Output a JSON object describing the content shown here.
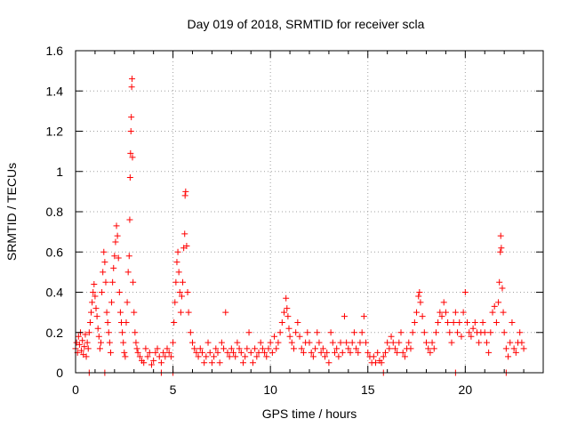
{
  "chart_data": {
    "type": "scatter",
    "title": "Day 019 of 2018, SRMTID for receiver scla",
    "xlabel": "GPS time / hours",
    "ylabel": "SRMTID / TECUs",
    "xlim": [
      0,
      24
    ],
    "ylim": [
      0,
      1.6
    ],
    "xticks": [
      0,
      5,
      10,
      15,
      20
    ],
    "xtick_labels": [
      "0",
      "5",
      "10",
      "15",
      "20"
    ],
    "yticks": [
      0,
      0.2,
      0.4,
      0.6,
      0.8,
      1,
      1.2,
      1.4,
      1.6
    ],
    "ytick_labels": [
      "0",
      "0.2",
      "0.4",
      "0.6",
      "0.8",
      "1",
      "1.2",
      "1.4",
      "1.6"
    ],
    "grid": true,
    "marker": "plus",
    "series_color": "#ff0000",
    "series": [
      {
        "name": "SRMTID",
        "points": [
          [
            0.0,
            0.12
          ],
          [
            0.05,
            0.15
          ],
          [
            0.1,
            0.1
          ],
          [
            0.15,
            0.18
          ],
          [
            0.2,
            0.14
          ],
          [
            0.25,
            0.2
          ],
          [
            0.3,
            0.11
          ],
          [
            0.35,
            0.16
          ],
          [
            0.4,
            0.09
          ],
          [
            0.45,
            0.13
          ],
          [
            0.5,
            0.19
          ],
          [
            0.55,
            0.08
          ],
          [
            0.6,
            0.15
          ],
          [
            0.65,
            0.12
          ],
          [
            0.7,
            0.2
          ],
          [
            0.75,
            0.25
          ],
          [
            0.8,
            0.3
          ],
          [
            0.85,
            0.35
          ],
          [
            0.9,
            0.4
          ],
          [
            0.95,
            0.44
          ],
          [
            1.0,
            0.38
          ],
          [
            1.05,
            0.32
          ],
          [
            1.1,
            0.28
          ],
          [
            1.15,
            0.22
          ],
          [
            1.2,
            0.18
          ],
          [
            1.25,
            0.12
          ],
          [
            1.3,
            0.15
          ],
          [
            1.35,
            0.4
          ],
          [
            1.4,
            0.5
          ],
          [
            1.45,
            0.6
          ],
          [
            1.5,
            0.55
          ],
          [
            1.55,
            0.45
          ],
          [
            1.6,
            0.3
          ],
          [
            1.65,
            0.25
          ],
          [
            1.7,
            0.2
          ],
          [
            1.75,
            0.15
          ],
          [
            1.8,
            0.1
          ],
          [
            1.85,
            0.35
          ],
          [
            1.9,
            0.45
          ],
          [
            1.95,
            0.52
          ],
          [
            2.0,
            0.58
          ],
          [
            2.05,
            0.65
          ],
          [
            2.1,
            0.73
          ],
          [
            2.15,
            0.68
          ],
          [
            2.2,
            0.57
          ],
          [
            2.25,
            0.4
          ],
          [
            2.3,
            0.3
          ],
          [
            2.35,
            0.25
          ],
          [
            2.4,
            0.2
          ],
          [
            2.45,
            0.15
          ],
          [
            2.5,
            0.1
          ],
          [
            2.55,
            0.08
          ],
          [
            2.6,
            0.25
          ],
          [
            2.65,
            0.35
          ],
          [
            2.7,
            0.5
          ],
          [
            2.75,
            0.58
          ],
          [
            2.78,
            0.76
          ],
          [
            2.8,
            0.97
          ],
          [
            2.82,
            1.09
          ],
          [
            2.84,
            1.2
          ],
          [
            2.86,
            1.27
          ],
          [
            2.88,
            1.42
          ],
          [
            2.9,
            1.46
          ],
          [
            2.92,
            1.07
          ],
          [
            2.95,
            0.45
          ],
          [
            3.0,
            0.3
          ],
          [
            3.05,
            0.2
          ],
          [
            3.1,
            0.15
          ],
          [
            3.15,
            0.12
          ],
          [
            3.2,
            0.1
          ],
          [
            3.3,
            0.08
          ],
          [
            3.4,
            0.06
          ],
          [
            3.5,
            0.05
          ],
          [
            3.6,
            0.12
          ],
          [
            3.7,
            0.08
          ],
          [
            3.8,
            0.1
          ],
          [
            3.9,
            0.04
          ],
          [
            4.0,
            0.06
          ],
          [
            4.1,
            0.1
          ],
          [
            4.2,
            0.12
          ],
          [
            4.3,
            0.08
          ],
          [
            4.4,
            0.05
          ],
          [
            4.5,
            0.1
          ],
          [
            4.6,
            0.08
          ],
          [
            4.7,
            0.12
          ],
          [
            4.8,
            0.1
          ],
          [
            4.9,
            0.08
          ],
          [
            5.0,
            0.15
          ],
          [
            5.05,
            0.25
          ],
          [
            5.1,
            0.35
          ],
          [
            5.15,
            0.45
          ],
          [
            5.2,
            0.55
          ],
          [
            5.25,
            0.6
          ],
          [
            5.3,
            0.5
          ],
          [
            5.35,
            0.4
          ],
          [
            5.4,
            0.3
          ],
          [
            5.45,
            0.38
          ],
          [
            5.5,
            0.45
          ],
          [
            5.55,
            0.62
          ],
          [
            5.6,
            0.69
          ],
          [
            5.62,
            0.88
          ],
          [
            5.65,
            0.9
          ],
          [
            5.7,
            0.63
          ],
          [
            5.75,
            0.4
          ],
          [
            5.8,
            0.3
          ],
          [
            5.9,
            0.2
          ],
          [
            6.0,
            0.15
          ],
          [
            6.1,
            0.12
          ],
          [
            6.2,
            0.1
          ],
          [
            6.3,
            0.08
          ],
          [
            6.4,
            0.12
          ],
          [
            6.5,
            0.1
          ],
          [
            6.6,
            0.05
          ],
          [
            6.7,
            0.08
          ],
          [
            6.8,
            0.15
          ],
          [
            6.9,
            0.1
          ],
          [
            7.0,
            0.05
          ],
          [
            7.1,
            0.08
          ],
          [
            7.2,
            0.12
          ],
          [
            7.3,
            0.1
          ],
          [
            7.4,
            0.05
          ],
          [
            7.5,
            0.15
          ],
          [
            7.6,
            0.12
          ],
          [
            7.7,
            0.3
          ],
          [
            7.8,
            0.1
          ],
          [
            7.9,
            0.08
          ],
          [
            8.0,
            0.12
          ],
          [
            8.1,
            0.1
          ],
          [
            8.2,
            0.08
          ],
          [
            8.3,
            0.15
          ],
          [
            8.4,
            0.12
          ],
          [
            8.5,
            0.1
          ],
          [
            8.6,
            0.05
          ],
          [
            8.7,
            0.08
          ],
          [
            8.8,
            0.12
          ],
          [
            8.9,
            0.2
          ],
          [
            9.0,
            0.1
          ],
          [
            9.1,
            0.05
          ],
          [
            9.2,
            0.12
          ],
          [
            9.3,
            0.08
          ],
          [
            9.4,
            0.1
          ],
          [
            9.5,
            0.15
          ],
          [
            9.6,
            0.12
          ],
          [
            9.7,
            0.1
          ],
          [
            9.8,
            0.08
          ],
          [
            9.9,
            0.12
          ],
          [
            10.0,
            0.15
          ],
          [
            10.1,
            0.1
          ],
          [
            10.2,
            0.18
          ],
          [
            10.3,
            0.12
          ],
          [
            10.4,
            0.15
          ],
          [
            10.5,
            0.2
          ],
          [
            10.6,
            0.25
          ],
          [
            10.7,
            0.3
          ],
          [
            10.8,
            0.37
          ],
          [
            10.85,
            0.32
          ],
          [
            10.9,
            0.28
          ],
          [
            10.95,
            0.22
          ],
          [
            11.0,
            0.18
          ],
          [
            11.1,
            0.15
          ],
          [
            11.2,
            0.12
          ],
          [
            11.3,
            0.2
          ],
          [
            11.4,
            0.25
          ],
          [
            11.5,
            0.18
          ],
          [
            11.6,
            0.12
          ],
          [
            11.7,
            0.1
          ],
          [
            11.8,
            0.15
          ],
          [
            11.9,
            0.2
          ],
          [
            12.0,
            0.15
          ],
          [
            12.1,
            0.1
          ],
          [
            12.2,
            0.08
          ],
          [
            12.3,
            0.12
          ],
          [
            12.4,
            0.2
          ],
          [
            12.5,
            0.15
          ],
          [
            12.6,
            0.1
          ],
          [
            12.7,
            0.12
          ],
          [
            12.8,
            0.08
          ],
          [
            12.9,
            0.1
          ],
          [
            13.0,
            0.05
          ],
          [
            13.1,
            0.2
          ],
          [
            13.2,
            0.15
          ],
          [
            13.3,
            0.1
          ],
          [
            13.4,
            0.12
          ],
          [
            13.5,
            0.08
          ],
          [
            13.6,
            0.15
          ],
          [
            13.7,
            0.1
          ],
          [
            13.8,
            0.28
          ],
          [
            13.9,
            0.15
          ],
          [
            14.0,
            0.12
          ],
          [
            14.1,
            0.1
          ],
          [
            14.2,
            0.15
          ],
          [
            14.3,
            0.2
          ],
          [
            14.4,
            0.12
          ],
          [
            14.5,
            0.1
          ],
          [
            14.6,
            0.15
          ],
          [
            14.7,
            0.2
          ],
          [
            14.8,
            0.28
          ],
          [
            14.9,
            0.15
          ],
          [
            15.0,
            0.1
          ],
          [
            15.1,
            0.08
          ],
          [
            15.2,
            0.05
          ],
          [
            15.3,
            0.08
          ],
          [
            15.4,
            0.05
          ],
          [
            15.5,
            0.1
          ],
          [
            15.6,
            0.06
          ],
          [
            15.7,
            0.05
          ],
          [
            15.8,
            0.08
          ],
          [
            15.9,
            0.1
          ],
          [
            16.0,
            0.15
          ],
          [
            16.1,
            0.12
          ],
          [
            16.2,
            0.18
          ],
          [
            16.3,
            0.15
          ],
          [
            16.4,
            0.12
          ],
          [
            16.5,
            0.1
          ],
          [
            16.6,
            0.15
          ],
          [
            16.7,
            0.2
          ],
          [
            16.8,
            0.1
          ],
          [
            16.9,
            0.08
          ],
          [
            17.0,
            0.12
          ],
          [
            17.1,
            0.15
          ],
          [
            17.2,
            0.12
          ],
          [
            17.3,
            0.2
          ],
          [
            17.4,
            0.25
          ],
          [
            17.5,
            0.3
          ],
          [
            17.6,
            0.38
          ],
          [
            17.65,
            0.4
          ],
          [
            17.7,
            0.35
          ],
          [
            17.8,
            0.28
          ],
          [
            17.9,
            0.2
          ],
          [
            18.0,
            0.15
          ],
          [
            18.1,
            0.12
          ],
          [
            18.2,
            0.1
          ],
          [
            18.3,
            0.15
          ],
          [
            18.4,
            0.12
          ],
          [
            18.5,
            0.2
          ],
          [
            18.6,
            0.25
          ],
          [
            18.7,
            0.3
          ],
          [
            18.8,
            0.28
          ],
          [
            18.9,
            0.35
          ],
          [
            19.0,
            0.3
          ],
          [
            19.1,
            0.25
          ],
          [
            19.2,
            0.2
          ],
          [
            19.3,
            0.15
          ],
          [
            19.4,
            0.25
          ],
          [
            19.5,
            0.3
          ],
          [
            19.6,
            0.2
          ],
          [
            19.7,
            0.25
          ],
          [
            19.8,
            0.18
          ],
          [
            19.9,
            0.3
          ],
          [
            20.0,
            0.4
          ],
          [
            20.1,
            0.25
          ],
          [
            20.2,
            0.2
          ],
          [
            20.3,
            0.18
          ],
          [
            20.4,
            0.22
          ],
          [
            20.5,
            0.25
          ],
          [
            20.6,
            0.2
          ],
          [
            20.7,
            0.15
          ],
          [
            20.8,
            0.2
          ],
          [
            20.9,
            0.25
          ],
          [
            21.0,
            0.2
          ],
          [
            21.1,
            0.15
          ],
          [
            21.2,
            0.1
          ],
          [
            21.3,
            0.2
          ],
          [
            21.4,
            0.3
          ],
          [
            21.5,
            0.33
          ],
          [
            21.6,
            0.25
          ],
          [
            21.7,
            0.35
          ],
          [
            21.75,
            0.45
          ],
          [
            21.8,
            0.6
          ],
          [
            21.82,
            0.68
          ],
          [
            21.85,
            0.62
          ],
          [
            21.9,
            0.42
          ],
          [
            21.95,
            0.3
          ],
          [
            22.0,
            0.2
          ],
          [
            22.1,
            0.12
          ],
          [
            22.2,
            0.08
          ],
          [
            22.3,
            0.15
          ],
          [
            22.4,
            0.25
          ],
          [
            22.5,
            0.12
          ],
          [
            22.6,
            0.1
          ],
          [
            22.7,
            0.15
          ],
          [
            22.8,
            0.2
          ],
          [
            22.9,
            0.15
          ],
          [
            23.0,
            0.12
          ],
          [
            0.7,
            0.0
          ],
          [
            1.5,
            0.0
          ],
          [
            4.4,
            0.0
          ],
          [
            5.0,
            0.0
          ],
          [
            15.8,
            0.0
          ],
          [
            19.5,
            0.0
          ],
          [
            22.1,
            0.0
          ]
        ]
      }
    ]
  }
}
